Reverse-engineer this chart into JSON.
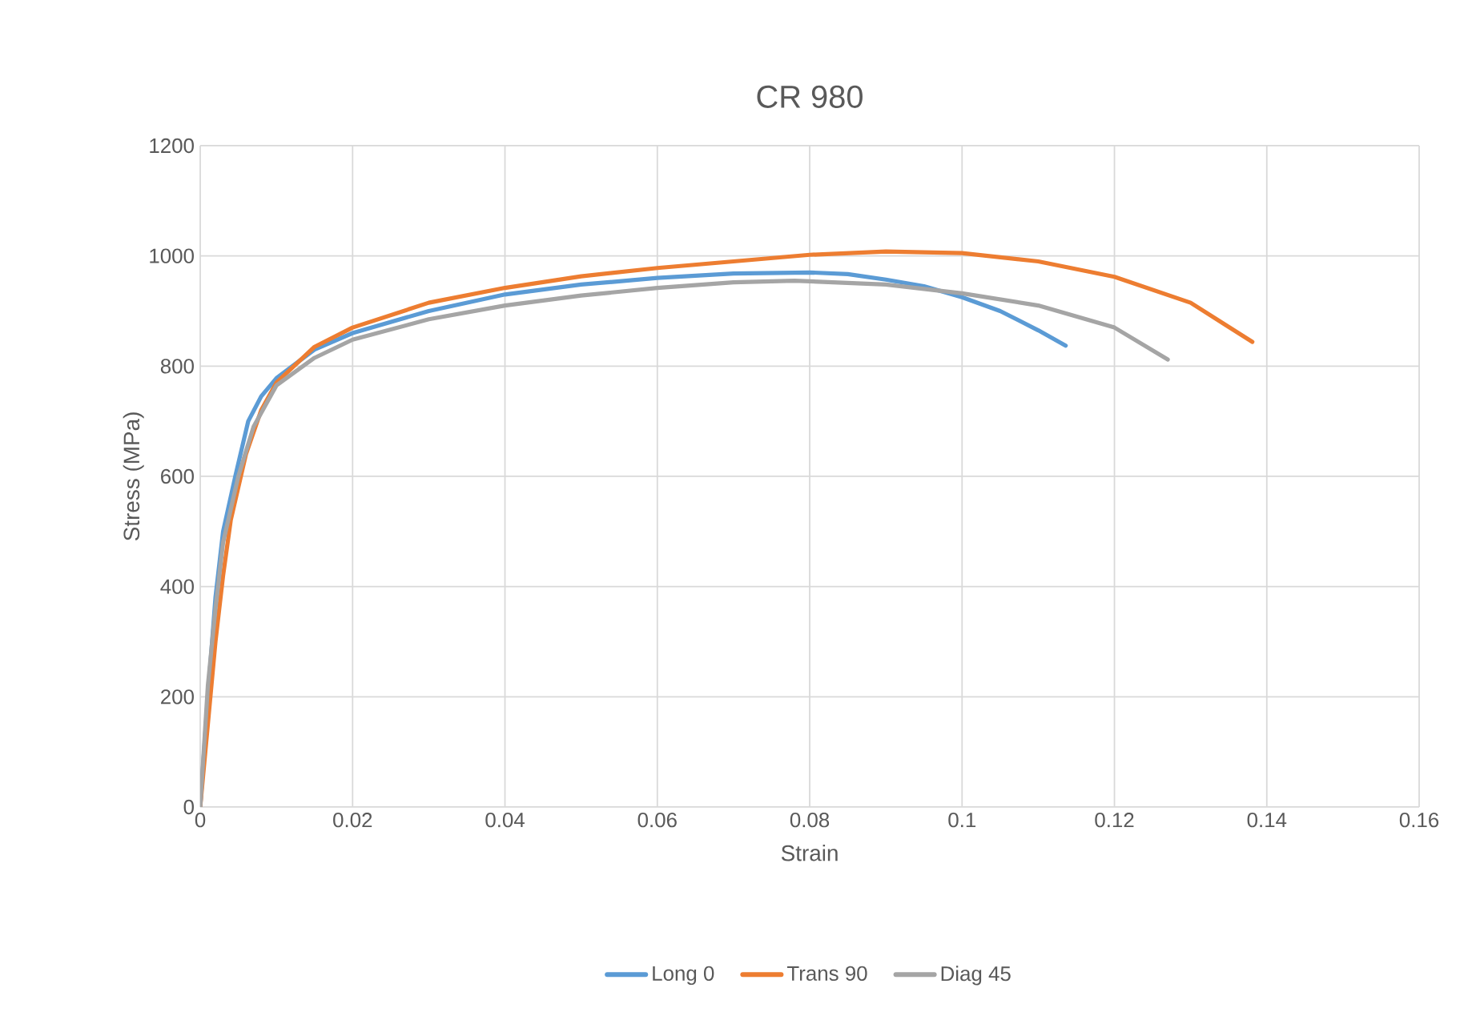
{
  "chart_data": {
    "type": "line",
    "title": "CR 980",
    "xlabel": "Strain",
    "ylabel": "Stress (MPa)",
    "xlim": [
      0,
      0.16
    ],
    "xticks": [
      0,
      0.02,
      0.04,
      0.06,
      0.08,
      0.1,
      0.12,
      0.14,
      0.16
    ],
    "ylim": [
      0,
      1200
    ],
    "yticks": [
      0,
      200,
      400,
      600,
      800,
      1000,
      1200
    ],
    "grid": true,
    "legend": "bottom",
    "marker": "none",
    "line_style": "solid",
    "series": [
      {
        "name": "Long 0",
        "color": "#5b9bd5",
        "x": [
          0,
          0.001,
          0.002,
          0.003,
          0.0046,
          0.0063,
          0.008,
          0.01,
          0.015,
          0.02,
          0.03,
          0.04,
          0.05,
          0.06,
          0.07,
          0.08,
          0.085,
          0.09,
          0.095,
          0.1,
          0.105,
          0.11,
          0.1136
        ],
        "values": [
          0,
          200,
          380,
          500,
          600,
          700,
          745,
          778,
          830,
          860,
          900,
          930,
          948,
          960,
          968,
          970,
          967,
          957,
          945,
          925,
          900,
          865,
          837
        ]
      },
      {
        "name": "Trans 90",
        "color": "#ed7d31",
        "x": [
          0,
          0.001,
          0.002,
          0.003,
          0.004,
          0.006,
          0.008,
          0.01,
          0.015,
          0.02,
          0.03,
          0.04,
          0.05,
          0.06,
          0.07,
          0.08,
          0.09,
          0.1,
          0.11,
          0.12,
          0.13,
          0.1381
        ],
        "values": [
          0,
          150,
          300,
          420,
          520,
          640,
          720,
          770,
          835,
          870,
          915,
          942,
          963,
          978,
          990,
          1002,
          1008,
          1005,
          990,
          962,
          915,
          844
        ]
      },
      {
        "name": "Diag 45",
        "color": "#a5a5a5",
        "x": [
          0,
          0.001,
          0.002,
          0.003,
          0.005,
          0.007,
          0.01,
          0.015,
          0.02,
          0.03,
          0.04,
          0.05,
          0.06,
          0.07,
          0.078,
          0.09,
          0.1,
          0.11,
          0.12,
          0.127
        ],
        "values": [
          0,
          220,
          360,
          480,
          600,
          690,
          765,
          815,
          848,
          885,
          910,
          928,
          942,
          952,
          955,
          948,
          932,
          910,
          870,
          812
        ]
      }
    ]
  }
}
